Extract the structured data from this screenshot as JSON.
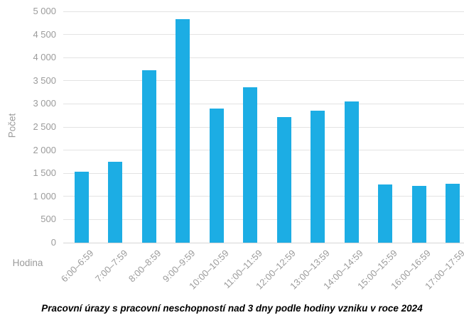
{
  "chart_data": {
    "type": "bar",
    "title": "Pracovní úrazy s pracovní neschopností nad 3 dny podle hodiny vzniku v roce 2024",
    "xlabel": "Hodina",
    "ylabel": "Počet",
    "categories": [
      "6:00–6:59",
      "7:00–7:59",
      "8:00–8:59",
      "9:00–9:59",
      "10:00–10:59",
      "11:00–11:59",
      "12:00–12:59",
      "13:00–13:59",
      "14:00–14:59",
      "15:00–15:59",
      "16:00–16:59",
      "17:00–17:59"
    ],
    "values": [
      1540,
      1750,
      3730,
      4830,
      2900,
      3360,
      2720,
      2850,
      3050,
      1260,
      1230,
      1270
    ],
    "ylim": [
      0,
      5000
    ],
    "ytick_step": 500,
    "grid": true,
    "legend_position": "none",
    "colors": {
      "bar": "#1CADE4",
      "axis_text": "#9B9B9B",
      "gridline": "#E3E3E3",
      "axis_line": "#D5D5D5",
      "title_text": "#000000"
    }
  }
}
